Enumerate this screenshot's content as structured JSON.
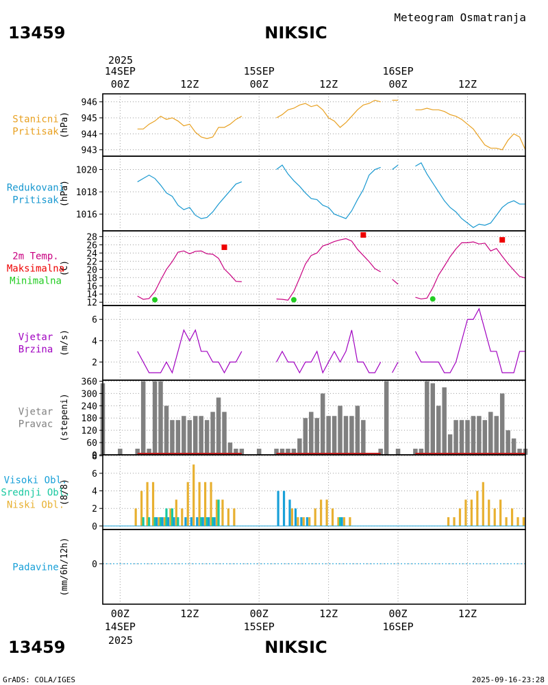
{
  "header": {
    "station_id": "13459",
    "station_name": "NIKSIC",
    "subtitle": "Meteogram Osmatranja",
    "credit": "GrADS: COLA/IGES",
    "timestamp": "2025-09-16-23:28"
  },
  "time_axis": {
    "year": "2025",
    "day_ticks": [
      {
        "date": "14SEP",
        "hour": "00Z",
        "t": 0
      },
      {
        "date": "15SEP",
        "hour": "00Z",
        "t": 24
      },
      {
        "date": "16SEP",
        "hour": "00Z",
        "t": 48
      }
    ],
    "noon_ticks": [
      {
        "hour": "12Z",
        "t": 12
      },
      {
        "hour": "12Z",
        "t": 36
      },
      {
        "hour": "12Z",
        "t": 60
      }
    ],
    "range_hours": [
      -3,
      70
    ]
  },
  "colors": {
    "pressure": "#e8a020",
    "reduced_pressure": "#1898d0",
    "temperature": "#c80080",
    "tmax": "#ee0000",
    "tmin": "#22cc22",
    "wind": "#a000c0",
    "direction_bar": "#808080",
    "direction_base": "#c02020",
    "cloud_high": "#18a0d8",
    "cloud_mid": "#18c8a0",
    "cloud_low": "#e8b030",
    "precip": "#18a0d8"
  },
  "chart_data": [
    {
      "type": "line",
      "id": "station_pressure",
      "label": [
        "Stanicni",
        "Pritisak"
      ],
      "ylabel": "(hPa)",
      "ylim": [
        942.6,
        946.5
      ],
      "yticks": [
        943,
        944,
        945,
        946
      ],
      "series": [
        {
          "name": "Stanicni Pritisak",
          "color": "pressure",
          "x": [
            3,
            4,
            5,
            6,
            7,
            8,
            9,
            10,
            11,
            12,
            13,
            14,
            15,
            16,
            17,
            18,
            19,
            20,
            21
          ],
          "values": [
            944.3,
            944.3,
            944.6,
            944.8,
            945.1,
            944.9,
            945.0,
            944.8,
            944.5,
            944.6,
            944.1,
            943.8,
            943.7,
            943.8,
            944.4,
            944.4,
            944.6,
            944.9,
            945.1
          ]
        },
        {
          "name": "Stanicni Pritisak",
          "color": "pressure",
          "x": [
            27,
            28,
            29,
            30,
            31,
            32,
            33,
            34,
            35,
            36,
            37,
            38,
            39,
            40,
            41,
            42,
            43,
            44,
            45
          ],
          "values": [
            945.0,
            945.2,
            945.5,
            945.6,
            945.8,
            945.9,
            945.7,
            945.8,
            945.5,
            945.0,
            944.8,
            944.4,
            944.7,
            945.1,
            945.5,
            945.8,
            945.9,
            946.1,
            946.0
          ]
        },
        {
          "name": "Stanicni Pritisak",
          "color": "pressure",
          "x": [
            47,
            48
          ],
          "values": [
            946.1,
            946.1
          ]
        },
        {
          "name": "Stanicni Pritisak",
          "color": "pressure",
          "x": [
            51,
            52,
            53,
            54,
            55,
            56,
            57,
            58,
            59,
            60,
            61,
            62,
            63,
            64,
            65,
            66,
            67,
            68,
            69,
            70
          ],
          "values": [
            945.5,
            945.5,
            945.6,
            945.5,
            945.5,
            945.4,
            945.2,
            945.1,
            944.9,
            944.6,
            944.3,
            943.8,
            943.3,
            943.1,
            943.1,
            943.0,
            943.6,
            944.0,
            943.8,
            943.0
          ]
        }
      ]
    },
    {
      "type": "line",
      "id": "reduced_pressure",
      "label": [
        "Redukovani",
        "Pritisak"
      ],
      "ylabel": "(hPa)",
      "ylim": [
        1014.5,
        1021.2
      ],
      "yticks": [
        1016,
        1018,
        1020
      ],
      "series": [
        {
          "name": "Redukovani Pritisak",
          "color": "reduced_pressure",
          "x": [
            3,
            4,
            5,
            6,
            7,
            8,
            9,
            10,
            11,
            12,
            13,
            14,
            15,
            16,
            17,
            18,
            19,
            20,
            21
          ],
          "values": [
            1018.9,
            1019.2,
            1019.5,
            1019.2,
            1018.6,
            1017.9,
            1017.6,
            1016.8,
            1016.4,
            1016.6,
            1015.9,
            1015.6,
            1015.7,
            1016.2,
            1016.9,
            1017.5,
            1018.1,
            1018.7,
            1018.9
          ]
        },
        {
          "name": "Redukovani Pritisak",
          "color": "reduced_pressure",
          "x": [
            27,
            28,
            29,
            30,
            31,
            32,
            33,
            34,
            35,
            36,
            37,
            38,
            39,
            40,
            41,
            42,
            43,
            44,
            45
          ],
          "values": [
            1020.0,
            1020.4,
            1019.6,
            1019.0,
            1018.5,
            1017.9,
            1017.4,
            1017.3,
            1016.8,
            1016.6,
            1016.0,
            1015.8,
            1015.6,
            1016.3,
            1017.3,
            1018.2,
            1019.5,
            1020.0,
            1020.2
          ]
        },
        {
          "name": "Redukovani Pritisak",
          "color": "reduced_pressure",
          "x": [
            47,
            48
          ],
          "values": [
            1020.0,
            1020.4
          ]
        },
        {
          "name": "Redukovani Pritisak",
          "color": "reduced_pressure",
          "x": [
            51,
            52,
            53,
            54,
            55,
            56,
            57,
            58,
            59,
            60,
            61,
            62,
            63,
            64,
            65,
            66,
            67,
            68,
            69,
            70
          ],
          "values": [
            1020.3,
            1020.6,
            1019.6,
            1018.8,
            1018.0,
            1017.2,
            1016.6,
            1016.2,
            1015.6,
            1015.2,
            1014.8,
            1015.1,
            1015.0,
            1015.2,
            1015.9,
            1016.6,
            1017.0,
            1017.2,
            1016.9,
            1016.9
          ]
        }
      ]
    },
    {
      "type": "line",
      "id": "temperature",
      "label": [
        "2m Temp.",
        "Maksimalna",
        "Minimalna"
      ],
      "label_colors": [
        "temperature",
        "tmax",
        "tmin"
      ],
      "ylabel": "(C)",
      "ylim": [
        11.2,
        29.4
      ],
      "yticks": [
        12,
        14,
        16,
        18,
        20,
        22,
        24,
        26,
        28
      ],
      "series": [
        {
          "name": "2m Temp.",
          "color": "temperature",
          "x": [
            3,
            4,
            5,
            6,
            7,
            8,
            9,
            10,
            11,
            12,
            13,
            14,
            15,
            16,
            17,
            18,
            19,
            20,
            21
          ],
          "values": [
            13.5,
            12.7,
            12.9,
            14.6,
            17.4,
            20.0,
            21.9,
            24.2,
            24.5,
            23.8,
            24.4,
            24.5,
            23.8,
            23.7,
            22.7,
            20.1,
            18.7,
            17.1,
            17.0
          ]
        },
        {
          "name": "2m Temp.",
          "color": "temperature",
          "x": [
            27,
            28,
            29,
            30,
            31,
            32,
            33,
            34,
            35,
            36,
            37,
            38,
            39,
            40,
            41,
            42,
            43,
            44,
            45
          ],
          "values": [
            12.8,
            12.7,
            12.5,
            14.6,
            17.9,
            21.3,
            23.4,
            24.0,
            25.7,
            26.2,
            26.8,
            27.2,
            27.5,
            26.9,
            24.9,
            23.4,
            21.9,
            20.2,
            19.4
          ]
        },
        {
          "name": "2m Temp.",
          "color": "temperature",
          "x": [
            47,
            48
          ],
          "values": [
            17.6,
            16.4
          ]
        },
        {
          "name": "2m Temp.",
          "color": "temperature",
          "x": [
            51,
            52,
            53,
            54,
            55,
            56,
            57,
            58,
            59,
            60,
            61,
            62,
            63,
            64,
            65,
            66,
            67,
            68,
            69,
            70
          ],
          "values": [
            13.2,
            12.8,
            13.0,
            15.5,
            18.6,
            20.8,
            23.1,
            25.0,
            26.5,
            26.5,
            26.7,
            26.2,
            26.4,
            24.5,
            25.1,
            23.2,
            21.4,
            19.8,
            18.3,
            17.9
          ]
        },
        {
          "name": "Maksimalna",
          "color": "tmax",
          "marker": "square",
          "x": [
            18,
            42,
            66
          ],
          "values": [
            25.4,
            28.4,
            27.2
          ]
        },
        {
          "name": "Minimalna",
          "color": "tmin",
          "marker": "circle",
          "x": [
            6,
            30,
            54
          ],
          "values": [
            12.6,
            12.6,
            12.8
          ]
        }
      ]
    },
    {
      "type": "line",
      "id": "wind_speed",
      "label": [
        "Vjetar",
        "Brzina"
      ],
      "ylabel": "(m/s)",
      "ylim": [
        0.3,
        7.3
      ],
      "yticks": [
        2,
        4,
        6
      ],
      "series": [
        {
          "name": "Vjetar Brzina",
          "color": "wind",
          "x": [
            3,
            4,
            5,
            6,
            7,
            8,
            9,
            10,
            11,
            12,
            13,
            14,
            15,
            16,
            17,
            18,
            19,
            20,
            21
          ],
          "values": [
            3,
            2,
            1,
            1,
            1,
            2,
            1,
            3,
            5,
            4,
            5,
            3,
            3,
            2,
            2,
            1,
            2,
            2,
            3
          ]
        },
        {
          "name": "Vjetar Brzina",
          "color": "wind",
          "x": [
            27,
            28,
            29,
            30,
            31,
            32,
            33,
            34,
            35,
            36,
            37,
            38,
            39,
            40,
            41,
            42,
            43,
            44,
            45
          ],
          "values": [
            2,
            3,
            2,
            2,
            1,
            2,
            2,
            3,
            1,
            2,
            3,
            2,
            3,
            5,
            2,
            2,
            1,
            1,
            2
          ]
        },
        {
          "name": "Vjetar Brzina",
          "color": "wind",
          "x": [
            47,
            48
          ],
          "values": [
            1,
            2
          ]
        },
        {
          "name": "Vjetar Brzina",
          "color": "wind",
          "x": [
            51,
            52,
            53,
            54,
            55,
            56,
            57,
            58,
            59,
            60,
            61,
            62,
            63,
            64,
            65,
            66,
            67,
            68,
            69,
            70
          ],
          "values": [
            3,
            2,
            2,
            2,
            2,
            1,
            1,
            2,
            4,
            6,
            6,
            7,
            5,
            3,
            3,
            1,
            1,
            1,
            3,
            3
          ]
        }
      ]
    },
    {
      "type": "bar",
      "id": "wind_direction",
      "label": [
        "Vjetar",
        "Pravac"
      ],
      "ylabel": "(stepeni)",
      "ylim": [
        0,
        365
      ],
      "yticks": [
        0,
        60,
        120,
        180,
        240,
        300,
        360
      ],
      "series": [
        {
          "name": "Vjetar Pravac",
          "color": "direction_bar",
          "x": [
            -3,
            0,
            3,
            4,
            5,
            6,
            7,
            8,
            9,
            10,
            11,
            12,
            13,
            14,
            15,
            16,
            17,
            18,
            19,
            20,
            21,
            24,
            27,
            28,
            29,
            30,
            31,
            32,
            33,
            34,
            35,
            36,
            37,
            38,
            39,
            40,
            41,
            42,
            45,
            46,
            48,
            51,
            52,
            53,
            54,
            55,
            56,
            57,
            58,
            59,
            60,
            61,
            62,
            63,
            64,
            65,
            66,
            67,
            68,
            69,
            70
          ],
          "values": [
            350,
            30,
            30,
            360,
            30,
            360,
            360,
            240,
            170,
            170,
            190,
            170,
            190,
            190,
            170,
            210,
            280,
            210,
            60,
            30,
            30,
            30,
            30,
            30,
            30,
            30,
            80,
            180,
            210,
            180,
            300,
            190,
            190,
            240,
            190,
            190,
            240,
            170,
            30,
            360,
            30,
            30,
            30,
            360,
            350,
            240,
            330,
            100,
            170,
            170,
            170,
            190,
            190,
            170,
            210,
            190,
            300,
            120,
            80,
            30,
            30
          ]
        }
      ]
    },
    {
      "type": "bar",
      "id": "cloud_cover",
      "label": [
        "Visoki Obl.",
        "Srednji Obl.",
        "Niski Obl."
      ],
      "label_colors": [
        "cloud_high",
        "cloud_mid",
        "cloud_low"
      ],
      "ylabel": "(8/8)",
      "ylim": [
        -0.4,
        8.1
      ],
      "yticks": [
        0,
        2,
        4,
        6,
        8
      ],
      "series": [
        {
          "name": "Niski Obl.",
          "color": "cloud_low",
          "offset": -0.3,
          "x": [
            3,
            4,
            5,
            6,
            7,
            8,
            9,
            10,
            11,
            12,
            13,
            14,
            15,
            16,
            17,
            18,
            19,
            20,
            21,
            30,
            31,
            32,
            33,
            34,
            35,
            36,
            37,
            38,
            39,
            40,
            41,
            42,
            57,
            58,
            59,
            60,
            61,
            62,
            63,
            64,
            65,
            66,
            67,
            68,
            69,
            70
          ],
          "values": [
            2,
            4,
            5,
            5,
            1,
            1,
            2,
            3,
            2,
            5,
            7,
            5,
            5,
            5,
            3,
            3,
            2,
            2,
            0,
            2,
            1,
            1,
            1,
            2,
            3,
            3,
            2,
            1,
            1,
            1,
            0,
            0,
            1,
            1,
            2,
            3,
            3,
            4,
            5,
            3,
            2,
            3,
            1,
            2,
            1,
            1
          ]
        },
        {
          "name": "Srednji Obl.",
          "color": "cloud_mid",
          "offset": 0,
          "x": [
            4,
            5,
            6,
            7,
            8,
            9,
            10,
            13,
            14,
            15,
            16,
            17,
            38
          ],
          "values": [
            1,
            1,
            1,
            1,
            2,
            2,
            1,
            0,
            1,
            1,
            1,
            3,
            1
          ]
        },
        {
          "name": "Visoki Obl.",
          "color": "cloud_high",
          "offset": 0.3,
          "x": [
            6,
            7,
            8,
            9,
            11,
            12,
            13,
            14,
            15,
            16,
            27,
            28,
            29,
            30,
            31,
            32,
            38
          ],
          "values": [
            1,
            1,
            1,
            1,
            1,
            1,
            1,
            1,
            1,
            1,
            4,
            4,
            3,
            2,
            1,
            1,
            1
          ]
        }
      ]
    },
    {
      "type": "line",
      "id": "precipitation",
      "label": [
        "Padavine"
      ],
      "ylabel": "(mm/6h/12h)",
      "ylim": [
        -5.2,
        4.4
      ],
      "yticks": [
        0
      ],
      "series": [
        {
          "name": "Padavine",
          "color": "precip",
          "dashed": true,
          "x": [
            -3,
            70
          ],
          "values": [
            0,
            0
          ]
        }
      ]
    }
  ]
}
